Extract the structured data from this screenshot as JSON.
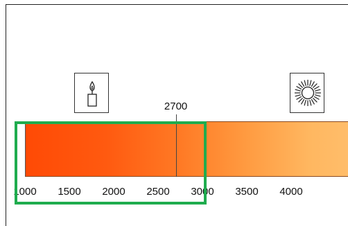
{
  "scale": {
    "ticks": [
      {
        "label": "1000",
        "value": 1000
      },
      {
        "label": "1500",
        "value": 1500
      },
      {
        "label": "2000",
        "value": 2000
      },
      {
        "label": "2500",
        "value": 2500
      },
      {
        "label": "3000",
        "value": 3000
      },
      {
        "label": "3500",
        "value": 3500
      },
      {
        "label": "4000",
        "value": 4000
      }
    ],
    "marker": {
      "label": "2700",
      "value": 2700
    },
    "gradient_start_color": "#ff4a05",
    "gradient_end_color": "#ffbd6a"
  },
  "icons": {
    "left": "candle-icon",
    "right": "sun-icon"
  },
  "highlight": {
    "color": "#1fac4e"
  }
}
